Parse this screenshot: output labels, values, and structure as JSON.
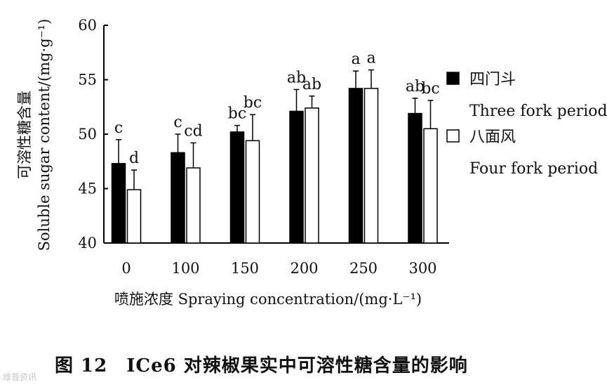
{
  "chart_data": {
    "type": "bar",
    "title": "",
    "xlabel": "喷施浓度 Spraying concentration/(mg·L⁻¹)",
    "ylabel_cn": "可溶性糖含量",
    "ylabel_en": "Soluble sugar content/(mg·g⁻¹)",
    "categories": [
      "0",
      "100",
      "150",
      "200",
      "250",
      "300"
    ],
    "ylim": [
      40,
      60
    ],
    "yticks": [
      "40",
      "45",
      "50",
      "55",
      "60"
    ],
    "legend_position": "right",
    "series": [
      {
        "name": "四门斗",
        "name_en": "Three fork period",
        "fill": "#000000",
        "values": [
          47.3,
          48.3,
          50.2,
          52.1,
          54.2,
          51.9
        ],
        "errors": [
          2.2,
          1.7,
          0.6,
          2.0,
          1.6,
          1.4
        ],
        "letters": [
          "c",
          "c",
          "bc",
          "ab",
          "a",
          "ab"
        ]
      },
      {
        "name": "八面风",
        "name_en": "Four fork period",
        "fill": "#ffffff",
        "values": [
          44.9,
          46.9,
          49.4,
          52.4,
          54.2,
          50.5
        ],
        "errors": [
          1.8,
          2.3,
          2.4,
          1.1,
          1.7,
          2.6
        ],
        "letters": [
          "d",
          "cd",
          "bc",
          "ab",
          "a",
          "bc"
        ]
      }
    ]
  },
  "caption": "图 12　ICe6 对辣椒果实中可溶性糖含量的影响",
  "watermark": "维普资讯"
}
